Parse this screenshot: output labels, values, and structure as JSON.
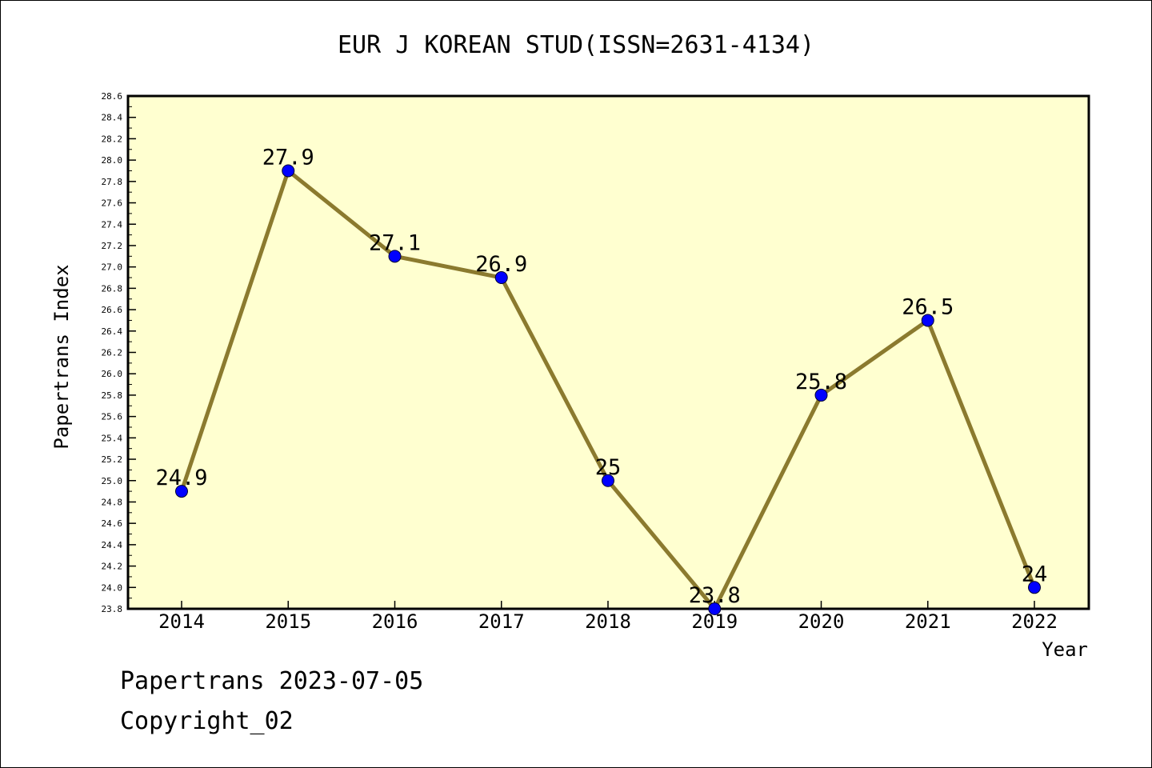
{
  "chart_data": {
    "type": "line",
    "title": "EUR J KOREAN STUD(ISSN=2631-4134)",
    "xlabel": "Year",
    "ylabel": "Papertrans Index",
    "categories": [
      "2014",
      "2015",
      "2016",
      "2017",
      "2018",
      "2019",
      "2020",
      "2021",
      "2022"
    ],
    "series": [
      {
        "values": [
          24.9,
          27.9,
          27.1,
          26.9,
          25.0,
          23.8,
          25.8,
          26.5,
          24.0
        ],
        "labels": [
          "24.9",
          "27.9",
          "27.1",
          "26.9",
          "25",
          "23.8",
          "25.8",
          "26.5",
          "24"
        ]
      }
    ],
    "ylim": [
      23.8,
      28.6
    ],
    "yticks": [
      "23.8",
      "24.0",
      "24.2",
      "24.4",
      "24.6",
      "24.8",
      "25.0",
      "25.2",
      "25.4",
      "25.6",
      "25.8",
      "26.0",
      "26.2",
      "26.4",
      "26.6",
      "26.8",
      "27.0",
      "27.2",
      "27.4",
      "27.6",
      "27.8",
      "28.0",
      "28.2",
      "28.4",
      "28.6"
    ],
    "grid": false,
    "colors": {
      "plot_background": "#ffffd0",
      "line": "#8b7a2e",
      "marker": "#0000ff"
    }
  },
  "footer": {
    "line1": "Papertrans 2023-07-05",
    "line2": "Copyright_02"
  }
}
